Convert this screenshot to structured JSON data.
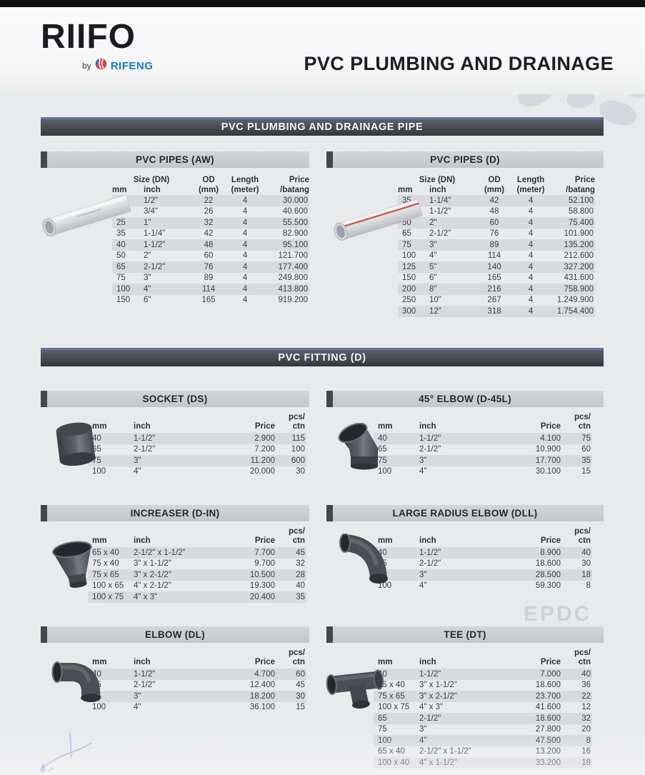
{
  "brand": {
    "name": "RIIFO",
    "by": "by",
    "company": "RIFENG"
  },
  "doc_title": "PVC PLUMBING AND DRAINAGE",
  "section_bands": {
    "pipes": "PVC PLUMBING AND DRAINAGE PIPE",
    "fittings": "PVC FITTING (D)"
  },
  "pipe_headers": {
    "size": "Size (DN)",
    "mm": "mm",
    "inch": "inch",
    "od1": "OD",
    "od2": "(mm)",
    "len1": "Length",
    "len2": "(meter)",
    "price1": "Price",
    "price2": "/batang"
  },
  "fitting_headers": {
    "mm": "mm",
    "inch": "inch",
    "price": "Price",
    "pcs1": "pcs/",
    "pcs2": "ctn"
  },
  "pipe_tables": [
    {
      "title": "PVC PIPES (AW)",
      "rows": [
        [
          "16",
          "1/2\"",
          "22",
          "4",
          "30.000"
        ],
        [
          "20",
          "3/4\"",
          "26",
          "4",
          "40.600"
        ],
        [
          "25",
          "1\"",
          "32",
          "4",
          "55.500"
        ],
        [
          "35",
          "1-1/4\"",
          "42",
          "4",
          "82.900"
        ],
        [
          "40",
          "1-1/2\"",
          "48",
          "4",
          "95.100"
        ],
        [
          "50",
          "2\"",
          "60",
          "4",
          "121.700"
        ],
        [
          "65",
          "2-1/2\"",
          "76",
          "4",
          "177.400"
        ],
        [
          "75",
          "3\"",
          "89",
          "4",
          "249.800"
        ],
        [
          "100",
          "4\"",
          "114",
          "4",
          "413.800"
        ],
        [
          "150",
          "6\"",
          "165",
          "4",
          "919.200"
        ]
      ]
    },
    {
      "title": "PVC PIPES (D)",
      "rows": [
        [
          "35",
          "1-1/4\"",
          "42",
          "4",
          "52.100"
        ],
        [
          "40",
          "1-1/2\"",
          "48",
          "4",
          "58.800"
        ],
        [
          "50",
          "2\"",
          "60",
          "4",
          "75.400"
        ],
        [
          "65",
          "2-1/2\"",
          "76",
          "4",
          "101.900"
        ],
        [
          "75",
          "3\"",
          "89",
          "4",
          "135.200"
        ],
        [
          "100",
          "4\"",
          "114",
          "4",
          "212.600"
        ],
        [
          "125",
          "5\"",
          "140",
          "4",
          "327.200"
        ],
        [
          "150",
          "6\"",
          "165",
          "4",
          "431.600"
        ],
        [
          "200",
          "8\"",
          "216",
          "4",
          "758.900"
        ],
        [
          "250",
          "10\"",
          "267",
          "4",
          "1.249.900"
        ],
        [
          "300",
          "12\"",
          "318",
          "4",
          "1.754.400"
        ]
      ]
    }
  ],
  "fitting_tables": [
    {
      "title": "SOCKET (DS)",
      "rows": [
        [
          "40",
          "1-1/2\"",
          "2.900",
          "115"
        ],
        [
          "65",
          "2-1/2\"",
          "7.200",
          "100"
        ],
        [
          "75",
          "3\"",
          "11.200",
          "600"
        ],
        [
          "100",
          "4\"",
          "20.000",
          "30"
        ]
      ]
    },
    {
      "title": "45° ELBOW (D-45L)",
      "rows": [
        [
          "40",
          "1-1/2\"",
          "4.100",
          "75"
        ],
        [
          "65",
          "2-1/2\"",
          "10.900",
          "60"
        ],
        [
          "75",
          "3\"",
          "17.700",
          "35"
        ],
        [
          "100",
          "4\"",
          "30.100",
          "15"
        ]
      ]
    },
    {
      "title": "INCREASER (D-IN)",
      "rows": [
        [
          "65 x 40",
          "2-1/2\" x 1-1/2\"",
          "7.700",
          "45"
        ],
        [
          "75 x 40",
          "3\" x 1-1/2\"",
          "9.700",
          "32"
        ],
        [
          "75 x 65",
          "3\" x 2-1/2\"",
          "10.500",
          "28"
        ],
        [
          "100 x 65",
          "4\" x 2-1/2\"",
          "19.300",
          "40"
        ],
        [
          "100 x 75",
          "4\" x 3\"",
          "20.400",
          "35"
        ]
      ]
    },
    {
      "title": "LARGE RADIUS ELBOW (DLL)",
      "rows": [
        [
          "40",
          "1-1/2\"",
          "8.900",
          "40"
        ],
        [
          "65",
          "2-1/2\"",
          "18.600",
          "30"
        ],
        [
          "75",
          "3\"",
          "28.500",
          "18"
        ],
        [
          "100",
          "4\"",
          "59.300",
          "8"
        ]
      ]
    },
    {
      "title": "ELBOW (DL)",
      "rows": [
        [
          "40",
          "1-1/2\"",
          "4.700",
          "60"
        ],
        [
          "65",
          "2-1/2\"",
          "12.400",
          "45"
        ],
        [
          "75",
          "3\"",
          "18.200",
          "30"
        ],
        [
          "100",
          "4\"",
          "36.100",
          "15"
        ]
      ]
    },
    {
      "title": "TEE (DT)",
      "rows": [
        [
          "40",
          "1-1/2\"",
          "7.000",
          "40"
        ],
        [
          "75 x 40",
          "3\" x 1-1/2\"",
          "18.600",
          "36"
        ],
        [
          "75 x 65",
          "3\" x 2-1/2\"",
          "23.700",
          "22"
        ],
        [
          "100 x 75",
          "4\" x 3\"",
          "41.600",
          "12"
        ],
        [
          "65",
          "2-1/2\"",
          "18.600",
          "32"
        ],
        [
          "75",
          "3\"",
          "27.800",
          "20"
        ],
        [
          "100",
          "4\"",
          "47.500",
          "8"
        ],
        [
          "65 x 40",
          "2-1/2\" x 1-1/2\"",
          "13.200",
          "16"
        ],
        [
          "100 x 40",
          "4\" x 1-1/2\"",
          "33.200",
          "18"
        ]
      ]
    }
  ],
  "watermark": {
    "backprint": "EPDC"
  },
  "photos": {
    "pipes_aw": "white-pvc-pipe",
    "pipes_d": "white-pvc-pipe-red-stripe",
    "socket": "pvc-socket-fitting",
    "elbow45": "pvc-45-elbow-fitting",
    "increaser": "pvc-increaser-fitting",
    "large_radius_elbow": "pvc-large-radius-elbow-fitting",
    "elbow": "pvc-90-elbow-fitting",
    "tee": "pvc-tee-fitting"
  },
  "colors": {
    "band_accent_blue": "#6671a0",
    "band_dark": "#3c3f45",
    "titlebar_gray": "#c8cbd0",
    "row_stripe": "#d8dade",
    "rifeng_blue": "#1879c2",
    "rifeng_red": "#d6404e"
  }
}
